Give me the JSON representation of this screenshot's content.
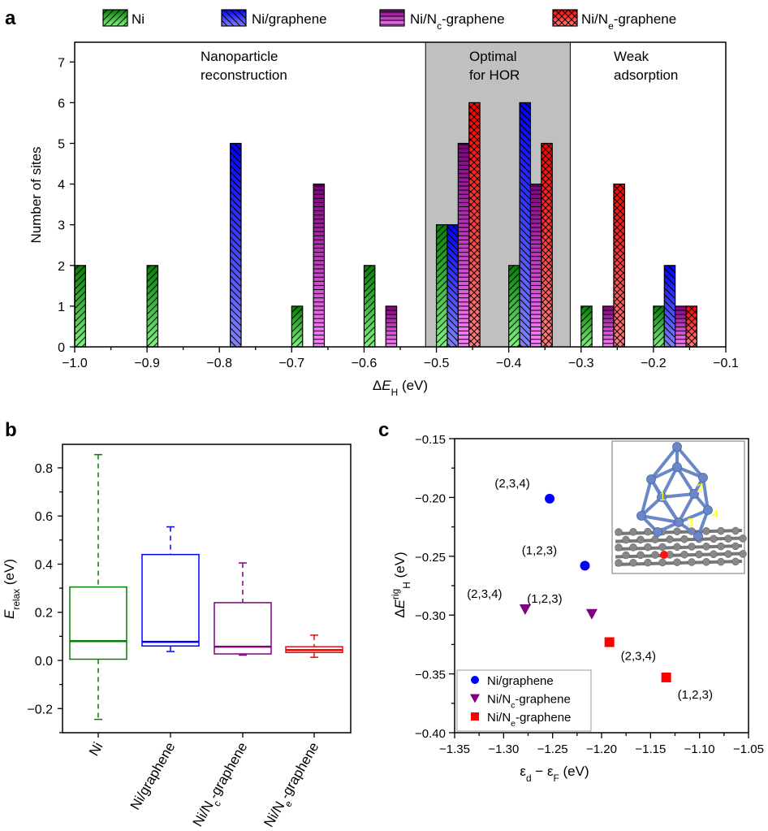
{
  "panel_letters": {
    "a": "a",
    "b": "b",
    "c": "c"
  },
  "series": [
    {
      "key": "Ni",
      "pre": "Ni",
      "sub": "",
      "post": "",
      "top": "#0a7a0a",
      "bottom": "#80f080",
      "hatch": "forward-diagonal"
    },
    {
      "key": "Ni/graphene",
      "pre": "Ni/graphene",
      "sub": "",
      "post": "",
      "top": "#0000ff",
      "bottom": "#8080ff",
      "hatch": "back-diagonal"
    },
    {
      "key": "Ni/Nc-graphene",
      "pre": "Ni/N",
      "sub": "c",
      "post": "-graphene",
      "top": "#800080",
      "bottom": "#ff80ff",
      "hatch": "horizontal"
    },
    {
      "key": "Ni/Ne-graphene",
      "pre": "Ni/N",
      "sub": "e",
      "post": "-graphene",
      "top": "#ff0000",
      "bottom": "#ff8080",
      "hatch": "crosshatch"
    }
  ],
  "chart_data": [
    {
      "panel": "a",
      "type": "bar",
      "xlabel": {
        "pre": "Δ",
        "italic": "E",
        "sub": "H",
        "post": " (eV)"
      },
      "ylabel": "Number of sites",
      "xlim": [
        -1.0,
        -0.1
      ],
      "ylim": [
        0,
        7.5
      ],
      "xticks": [
        "−1.0",
        "−0.9",
        "−0.8",
        "−0.7",
        "−0.6",
        "−0.5",
        "−0.4",
        "−0.3",
        "−0.2",
        "−0.1"
      ],
      "yticks": [
        "0",
        "1",
        "2",
        "3",
        "4",
        "5",
        "6",
        "7"
      ],
      "bin_starts": [
        -1.0,
        -0.9,
        -0.8,
        -0.7,
        -0.6,
        -0.5,
        -0.4,
        -0.3,
        -0.2
      ],
      "series": [
        {
          "name": "Ni",
          "values": [
            2,
            2,
            0,
            1,
            2,
            3,
            2,
            1,
            1
          ]
        },
        {
          "name": "Ni/graphene",
          "values": [
            0,
            0,
            5,
            0,
            0,
            3,
            6,
            0,
            2
          ]
        },
        {
          "name": "Ni/Nc-graphene",
          "values": [
            0,
            0,
            0,
            4,
            1,
            5,
            4,
            1,
            1
          ]
        },
        {
          "name": "Ni/Ne-graphene",
          "values": [
            0,
            0,
            0,
            0,
            0,
            6,
            5,
            4,
            1
          ]
        }
      ],
      "shaded_region": {
        "range": [
          -0.515,
          -0.315
        ],
        "color": "#c0c0c0"
      },
      "region_labels": [
        {
          "line1": "Nanoparticle",
          "line2": "reconstruction"
        },
        {
          "line1": "Optimal",
          "line2": "for HOR"
        },
        {
          "line1": "Weak",
          "line2": "adsorption"
        }
      ],
      "legend": "top"
    },
    {
      "panel": "b",
      "type": "box",
      "ylabel": {
        "italic": "E",
        "sub": "relax",
        "post": " (eV)"
      },
      "ylim": [
        -0.3,
        0.9
      ],
      "yticks": [
        "−0.2",
        "0.0",
        "0.2",
        "0.4",
        "0.6",
        "0.8"
      ],
      "categories": [
        "Ni",
        "Ni/graphene",
        "Ni/Nc-graphene",
        "Ni/Ne-graphene"
      ],
      "colors": [
        "#008000",
        "#0000ff",
        "#800080",
        "#ff0000"
      ],
      "boxes": [
        {
          "min": -0.245,
          "q1": 0.005,
          "median": 0.08,
          "q3": 0.305,
          "max": 0.855
        },
        {
          "min": 0.037,
          "q1": 0.06,
          "median": 0.077,
          "q3": 0.44,
          "max": 0.555
        },
        {
          "min": 0.022,
          "q1": 0.027,
          "median": 0.057,
          "q3": 0.24,
          "max": 0.405
        },
        {
          "min": 0.013,
          "q1": 0.033,
          "median": 0.043,
          "q3": 0.057,
          "max": 0.105
        }
      ]
    },
    {
      "panel": "c",
      "type": "scatter",
      "xlabel": {
        "a": "ε",
        "asub": "d",
        "mid": " − ",
        "b": "ε",
        "bsub": "F",
        "post": " (eV)"
      },
      "ylabel": {
        "pre": "Δ",
        "italic": "E",
        "sup": "rig",
        "sub": "H",
        "post": " (eV)"
      },
      "xlim": [
        -1.35,
        -1.05
      ],
      "ylim": [
        -0.4,
        -0.15
      ],
      "xticks": [
        "−1.35",
        "−1.30",
        "−1.25",
        "−1.20",
        "−1.15",
        "−1.10",
        "−1.05"
      ],
      "yticks": [
        "−0.40",
        "−0.35",
        "−0.30",
        "−0.25",
        "−0.20",
        "−0.15"
      ],
      "series": [
        {
          "name": "Ni/graphene",
          "marker": "circle",
          "color": "#0000ff",
          "points": [
            {
              "x": -1.253,
              "y": -0.201,
              "label": "(2,3,4)"
            },
            {
              "x": -1.217,
              "y": -0.258,
              "label": "(1,2,3)"
            }
          ]
        },
        {
          "name": "Ni/Nc-graphene",
          "marker": "triangle-down",
          "color": "#800080",
          "points": [
            {
              "x": -1.278,
              "y": -0.295,
              "label": "(2,3,4)"
            },
            {
              "x": -1.21,
              "y": -0.299,
              "label": "(1,2,3)"
            }
          ]
        },
        {
          "name": "Ni/Ne-graphene",
          "marker": "square",
          "color": "#ff0000",
          "points": [
            {
              "x": -1.192,
              "y": -0.323,
              "label": "(2,3,4)"
            },
            {
              "x": -1.134,
              "y": -0.353,
              "label": "(1,2,3)"
            }
          ]
        }
      ],
      "legend": "bottom-left",
      "inset": {
        "description_icon": "ni-cluster-on-graphene-structure",
        "site_labels": [
          "1",
          "2",
          "3",
          "4"
        ],
        "cluster_color": "#6a88c8",
        "substrate_color": "#777777",
        "site_label_color": "#ffff00"
      }
    }
  ]
}
